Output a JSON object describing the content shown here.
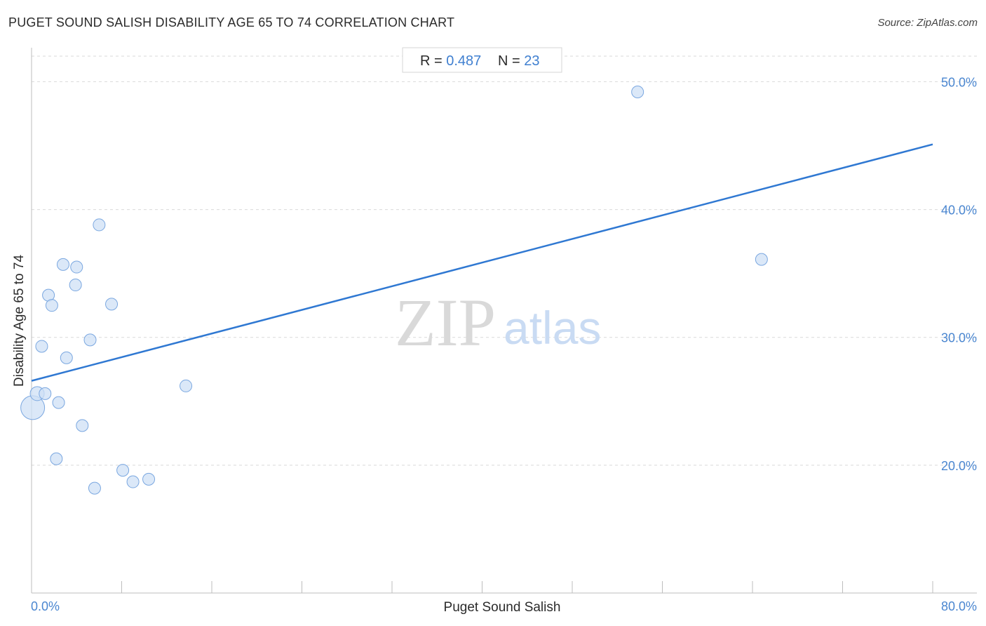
{
  "header": {
    "title": "PUGET SOUND SALISH DISABILITY AGE 65 TO 74 CORRELATION CHART",
    "source": "Source: ZipAtlas.com"
  },
  "stats": {
    "r_label": "R = ",
    "r_value": "0.487",
    "n_label": "N = ",
    "n_value": "23"
  },
  "watermark": {
    "zip": "ZIP",
    "atlas": "atlas"
  },
  "colors": {
    "point_fill": "#cfe0f6",
    "point_stroke": "#7aa7e0",
    "trend": "#2f78d2",
    "tick_text": "#4a86d0",
    "grid": "#d9d9d9"
  },
  "chart_data": {
    "type": "scatter",
    "title": "PUGET SOUND SALISH DISABILITY AGE 65 TO 74 CORRELATION CHART",
    "xlabel": "Puget Sound Salish",
    "ylabel": "Disability Age 65 to 74",
    "xlim": [
      0,
      80
    ],
    "ylim": [
      10,
      52
    ],
    "x_tick_labels": [
      "0.0%",
      "80.0%"
    ],
    "y_ticks": [
      20,
      30,
      40,
      50
    ],
    "y_tick_labels": [
      "20.0%",
      "30.0%",
      "40.0%",
      "50.0%"
    ],
    "grid": "horizontal dashed",
    "r": 0.487,
    "n": 23,
    "trendline": {
      "x": [
        0,
        80
      ],
      "y": [
        26.6,
        45.1
      ]
    },
    "points": [
      {
        "x": 0.1,
        "y": 24.5,
        "size": "large"
      },
      {
        "x": 0.5,
        "y": 25.6,
        "size": "medium"
      },
      {
        "x": 0.9,
        "y": 29.3,
        "size": "small"
      },
      {
        "x": 1.2,
        "y": 25.6,
        "size": "small"
      },
      {
        "x": 1.5,
        "y": 33.3,
        "size": "small"
      },
      {
        "x": 1.8,
        "y": 32.5,
        "size": "small"
      },
      {
        "x": 2.2,
        "y": 20.5,
        "size": "small"
      },
      {
        "x": 2.4,
        "y": 24.9,
        "size": "small"
      },
      {
        "x": 2.8,
        "y": 35.7,
        "size": "small"
      },
      {
        "x": 3.1,
        "y": 28.4,
        "size": "small"
      },
      {
        "x": 3.9,
        "y": 34.1,
        "size": "small"
      },
      {
        "x": 4.0,
        "y": 35.5,
        "size": "small"
      },
      {
        "x": 4.5,
        "y": 23.1,
        "size": "small"
      },
      {
        "x": 5.2,
        "y": 29.8,
        "size": "small"
      },
      {
        "x": 5.6,
        "y": 18.2,
        "size": "small"
      },
      {
        "x": 6.0,
        "y": 38.8,
        "size": "small"
      },
      {
        "x": 7.1,
        "y": 32.6,
        "size": "small"
      },
      {
        "x": 8.1,
        "y": 19.6,
        "size": "small"
      },
      {
        "x": 9.0,
        "y": 18.7,
        "size": "small"
      },
      {
        "x": 10.4,
        "y": 18.9,
        "size": "small"
      },
      {
        "x": 13.7,
        "y": 26.2,
        "size": "small"
      },
      {
        "x": 53.8,
        "y": 49.2,
        "size": "small"
      },
      {
        "x": 64.8,
        "y": 36.1,
        "size": "small"
      }
    ]
  }
}
